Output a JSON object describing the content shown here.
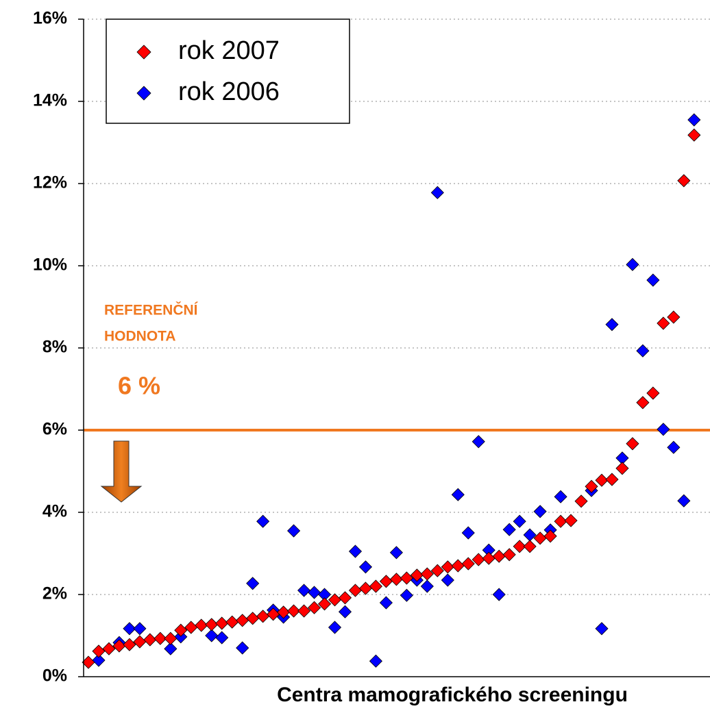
{
  "chart_data": {
    "type": "scatter",
    "xlabel": "Centra mamografického screeningu",
    "ylim": [
      0,
      16
    ],
    "yticks": [
      {
        "value": 0,
        "label": "0%"
      },
      {
        "value": 2,
        "label": "2%"
      },
      {
        "value": 4,
        "label": "4%"
      },
      {
        "value": 6,
        "label": "6%"
      },
      {
        "value": 8,
        "label": "8%"
      },
      {
        "value": 10,
        "label": "10%"
      },
      {
        "value": 12,
        "label": "12%"
      },
      {
        "value": 14,
        "label": "14%"
      },
      {
        "value": 16,
        "label": "16%"
      }
    ],
    "grid": true,
    "legend": "upper left",
    "reference_line": {
      "value": 6,
      "color": "#f07820",
      "label_lines": [
        "REFERENČNÍ",
        "HODNOTA"
      ],
      "value_label": "6 %"
    },
    "series": [
      {
        "name": "rok 2007",
        "color": "#ff0000",
        "values": [
          0.35,
          0.62,
          0.68,
          0.75,
          0.78,
          0.85,
          0.9,
          0.93,
          0.93,
          1.13,
          1.2,
          1.25,
          1.27,
          1.3,
          1.33,
          1.37,
          1.42,
          1.47,
          1.52,
          1.57,
          1.6,
          1.6,
          1.68,
          1.77,
          1.87,
          1.92,
          2.1,
          2.15,
          2.2,
          2.32,
          2.37,
          2.4,
          2.47,
          2.5,
          2.58,
          2.67,
          2.7,
          2.75,
          2.85,
          2.88,
          2.93,
          2.97,
          3.17,
          3.17,
          3.37,
          3.42,
          3.78,
          3.8,
          4.27,
          4.63,
          4.78,
          4.8,
          5.07,
          5.67,
          6.67,
          6.9,
          8.6,
          8.75,
          12.07,
          13.18
        ]
      },
      {
        "name": "rok 2006",
        "color": "#0000ff",
        "values": [
          null,
          0.4,
          null,
          0.83,
          1.17,
          1.17,
          null,
          null,
          0.68,
          0.97,
          null,
          null,
          1.0,
          0.95,
          null,
          0.7,
          2.27,
          3.78,
          1.62,
          1.45,
          3.55,
          2.1,
          2.05,
          2.0,
          1.2,
          1.58,
          3.05,
          2.67,
          0.38,
          1.8,
          3.02,
          1.98,
          2.35,
          2.2,
          11.78,
          2.35,
          4.43,
          3.5,
          5.72,
          3.08,
          2.0,
          3.58,
          3.78,
          3.45,
          4.02,
          3.57,
          4.38,
          null,
          null,
          4.53,
          1.17,
          8.57,
          5.32,
          10.03,
          7.93,
          9.65,
          6.02,
          5.58,
          4.28,
          13.55
        ]
      }
    ]
  }
}
